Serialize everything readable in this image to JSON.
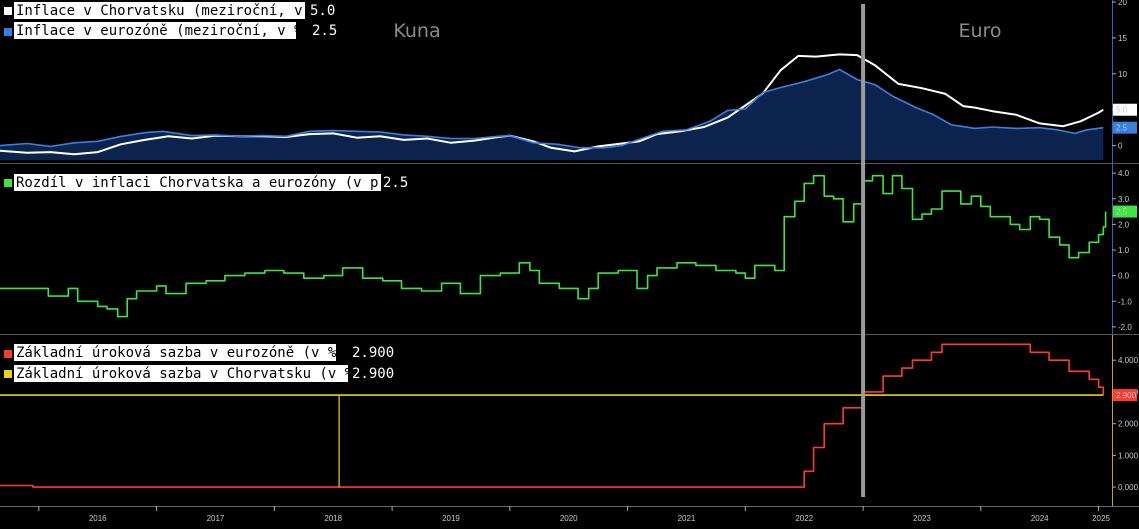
{
  "chart_data": [
    {
      "type": "area",
      "title": "",
      "xlabel": "",
      "ylabel": "",
      "x_range": [
        2015.67,
        2025.08
      ],
      "ylim": [
        -2,
        20
      ],
      "yticks": [
        "20",
        "15",
        "10",
        "5",
        "0"
      ],
      "grid": false,
      "legend_position": "top-left",
      "annotations": [
        "Kuna",
        "Euro"
      ],
      "series": [
        {
          "name": "Inflace v Chorvatsku (meziroční, v %)",
          "last_value": "5.0",
          "color": "#ffffff",
          "points": [
            [
              2015.67,
              -0.7
            ],
            [
              2015.9,
              -1.0
            ],
            [
              2016.1,
              -0.9
            ],
            [
              2016.3,
              -1.2
            ],
            [
              2016.5,
              -0.9
            ],
            [
              2016.7,
              0.2
            ],
            [
              2016.9,
              0.8
            ],
            [
              2017.1,
              1.3
            ],
            [
              2017.3,
              1.0
            ],
            [
              2017.5,
              1.4
            ],
            [
              2017.7,
              1.3
            ],
            [
              2017.9,
              1.3
            ],
            [
              2018.1,
              1.2
            ],
            [
              2018.3,
              1.6
            ],
            [
              2018.5,
              1.7
            ],
            [
              2018.7,
              1.1
            ],
            [
              2018.9,
              1.3
            ],
            [
              2019.1,
              0.8
            ],
            [
              2019.3,
              1.0
            ],
            [
              2019.5,
              0.4
            ],
            [
              2019.7,
              0.7
            ],
            [
              2019.9,
              1.2
            ],
            [
              2020.0,
              1.4
            ],
            [
              2020.2,
              0.6
            ],
            [
              2020.35,
              -0.3
            ],
            [
              2020.55,
              -0.8
            ],
            [
              2020.75,
              -0.1
            ],
            [
              2020.9,
              0.2
            ],
            [
              2021.1,
              0.6
            ],
            [
              2021.25,
              1.6
            ],
            [
              2021.45,
              2.0
            ],
            [
              2021.65,
              2.6
            ],
            [
              2021.85,
              3.9
            ],
            [
              2022.0,
              5.6
            ],
            [
              2022.15,
              7.3
            ],
            [
              2022.3,
              10.5
            ],
            [
              2022.45,
              12.5
            ],
            [
              2022.6,
              12.4
            ],
            [
              2022.8,
              12.7
            ],
            [
              2022.95,
              12.6
            ],
            [
              2023.1,
              11.2
            ],
            [
              2023.3,
              8.6
            ],
            [
              2023.5,
              8.0
            ],
            [
              2023.7,
              7.2
            ],
            [
              2023.85,
              5.5
            ],
            [
              2023.95,
              5.3
            ],
            [
              2024.1,
              4.8
            ],
            [
              2024.3,
              4.3
            ],
            [
              2024.5,
              3.1
            ],
            [
              2024.7,
              2.7
            ],
            [
              2024.85,
              3.4
            ],
            [
              2025.0,
              4.6
            ],
            [
              2025.04,
              5.0
            ]
          ]
        },
        {
          "name": "Inflace v eurozóně (meziroční, v %)",
          "last_value": "2.5",
          "color": "#3a7fe0",
          "points": [
            [
              2015.67,
              0.0
            ],
            [
              2015.9,
              0.3
            ],
            [
              2016.1,
              -0.1
            ],
            [
              2016.3,
              0.4
            ],
            [
              2016.5,
              0.6
            ],
            [
              2016.7,
              1.3
            ],
            [
              2016.9,
              1.8
            ],
            [
              2017.05,
              2.0
            ],
            [
              2017.3,
              1.4
            ],
            [
              2017.5,
              1.5
            ],
            [
              2017.7,
              1.3
            ],
            [
              2017.9,
              1.4
            ],
            [
              2018.1,
              1.3
            ],
            [
              2018.3,
              2.0
            ],
            [
              2018.5,
              2.1
            ],
            [
              2018.7,
              2.0
            ],
            [
              2018.9,
              1.9
            ],
            [
              2019.1,
              1.5
            ],
            [
              2019.3,
              1.3
            ],
            [
              2019.5,
              1.0
            ],
            [
              2019.7,
              1.0
            ],
            [
              2019.9,
              1.3
            ],
            [
              2020.0,
              1.4
            ],
            [
              2020.2,
              0.4
            ],
            [
              2020.4,
              0.2
            ],
            [
              2020.6,
              -0.3
            ],
            [
              2020.8,
              -0.3
            ],
            [
              2020.95,
              0.0
            ],
            [
              2021.1,
              0.9
            ],
            [
              2021.3,
              2.0
            ],
            [
              2021.5,
              2.2
            ],
            [
              2021.7,
              3.4
            ],
            [
              2021.85,
              4.9
            ],
            [
              2022.0,
              5.1
            ],
            [
              2022.15,
              7.4
            ],
            [
              2022.3,
              8.1
            ],
            [
              2022.5,
              8.9
            ],
            [
              2022.7,
              9.9
            ],
            [
              2022.8,
              10.6
            ],
            [
              2022.95,
              9.2
            ],
            [
              2023.1,
              8.5
            ],
            [
              2023.25,
              6.9
            ],
            [
              2023.45,
              5.3
            ],
            [
              2023.6,
              4.3
            ],
            [
              2023.75,
              2.9
            ],
            [
              2023.95,
              2.4
            ],
            [
              2024.1,
              2.6
            ],
            [
              2024.3,
              2.4
            ],
            [
              2024.5,
              2.5
            ],
            [
              2024.65,
              2.2
            ],
            [
              2024.8,
              1.7
            ],
            [
              2024.9,
              2.2
            ],
            [
              2025.04,
              2.5
            ]
          ]
        }
      ]
    },
    {
      "type": "line",
      "title": "",
      "xlabel": "",
      "ylabel": "",
      "x_range": [
        2015.67,
        2025.08
      ],
      "ylim": [
        -2.2,
        4.2
      ],
      "yticks": [
        "4.0",
        "3.0",
        "2.0",
        "1.0",
        "0.0",
        "-1.0",
        "-2.0"
      ],
      "grid": false,
      "legend_position": "top-left",
      "series": [
        {
          "name": "Rozdíl v inflaci Chorvatska a eurozóny (v p.b.)",
          "last_value": "2.5",
          "color": "#3ee53e",
          "step": true,
          "points": [
            [
              2015.67,
              -0.5
            ],
            [
              2015.95,
              -0.5
            ],
            [
              2016.0,
              -0.5
            ],
            [
              2016.08,
              -0.8
            ],
            [
              2016.25,
              -0.5
            ],
            [
              2016.33,
              -1.0
            ],
            [
              2016.5,
              -1.2
            ],
            [
              2016.58,
              -1.3
            ],
            [
              2016.67,
              -1.6
            ],
            [
              2016.75,
              -0.9
            ],
            [
              2016.83,
              -0.6
            ],
            [
              2017.0,
              -0.4
            ],
            [
              2017.08,
              -0.7
            ],
            [
              2017.25,
              -0.3
            ],
            [
              2017.42,
              -0.2
            ],
            [
              2017.58,
              0.0
            ],
            [
              2017.75,
              0.1
            ],
            [
              2017.92,
              0.2
            ],
            [
              2018.08,
              0.1
            ],
            [
              2018.25,
              -0.1
            ],
            [
              2018.42,
              0.0
            ],
            [
              2018.58,
              0.3
            ],
            [
              2018.75,
              -0.1
            ],
            [
              2018.92,
              -0.2
            ],
            [
              2019.08,
              -0.5
            ],
            [
              2019.25,
              -0.6
            ],
            [
              2019.42,
              -0.3
            ],
            [
              2019.58,
              -0.7
            ],
            [
              2019.75,
              0.0
            ],
            [
              2019.92,
              0.1
            ],
            [
              2020.08,
              0.5
            ],
            [
              2020.17,
              0.2
            ],
            [
              2020.25,
              -0.3
            ],
            [
              2020.42,
              -0.5
            ],
            [
              2020.58,
              -0.9
            ],
            [
              2020.67,
              -0.5
            ],
            [
              2020.75,
              0.1
            ],
            [
              2020.92,
              0.2
            ],
            [
              2021.08,
              -0.5
            ],
            [
              2021.17,
              0.0
            ],
            [
              2021.25,
              0.3
            ],
            [
              2021.42,
              0.5
            ],
            [
              2021.58,
              0.4
            ],
            [
              2021.75,
              0.2
            ],
            [
              2021.92,
              0.1
            ],
            [
              2022.0,
              -0.1
            ],
            [
              2022.08,
              0.4
            ],
            [
              2022.25,
              0.2
            ],
            [
              2022.33,
              2.3
            ],
            [
              2022.42,
              2.9
            ],
            [
              2022.5,
              3.6
            ],
            [
              2022.58,
              3.9
            ],
            [
              2022.67,
              3.1
            ],
            [
              2022.75,
              3.0
            ],
            [
              2022.83,
              2.1
            ],
            [
              2022.92,
              2.8
            ],
            [
              2023.0,
              3.7
            ],
            [
              2023.08,
              3.9
            ],
            [
              2023.17,
              3.2
            ],
            [
              2023.25,
              3.9
            ],
            [
              2023.33,
              3.4
            ],
            [
              2023.42,
              2.2
            ],
            [
              2023.5,
              2.4
            ],
            [
              2023.58,
              2.6
            ],
            [
              2023.67,
              3.3
            ],
            [
              2023.83,
              2.8
            ],
            [
              2023.92,
              3.1
            ],
            [
              2024.0,
              2.7
            ],
            [
              2024.08,
              2.3
            ],
            [
              2024.25,
              2.0
            ],
            [
              2024.33,
              1.8
            ],
            [
              2024.42,
              2.3
            ],
            [
              2024.5,
              2.2
            ],
            [
              2024.58,
              1.5
            ],
            [
              2024.67,
              1.2
            ],
            [
              2024.75,
              0.7
            ],
            [
              2024.83,
              0.9
            ],
            [
              2024.92,
              1.3
            ],
            [
              2025.0,
              1.6
            ],
            [
              2025.04,
              1.9
            ],
            [
              2025.06,
              2.5
            ]
          ]
        }
      ]
    },
    {
      "type": "line",
      "title": "",
      "xlabel": "",
      "ylabel": "",
      "x_range": [
        2015.67,
        2025.08
      ],
      "ylim": [
        -0.5,
        4.7
      ],
      "yticks": [
        "4.000",
        "3.000",
        "2.000",
        "1.000",
        "0.000"
      ],
      "grid": false,
      "legend_position": "top-left",
      "series": [
        {
          "name": "Základní úroková sazba v eurozóně (v %)",
          "last_value": "2.900",
          "color": "#ff3b30",
          "step": true,
          "points": [
            [
              2015.67,
              0.05
            ],
            [
              2015.85,
              0.05
            ],
            [
              2015.95,
              0.0
            ],
            [
              2022.25,
              0.0
            ],
            [
              2022.5,
              0.5
            ],
            [
              2022.58,
              1.25
            ],
            [
              2022.67,
              2.0
            ],
            [
              2022.83,
              2.5
            ],
            [
              2023.0,
              3.0
            ],
            [
              2023.17,
              3.5
            ],
            [
              2023.33,
              3.75
            ],
            [
              2023.42,
              4.0
            ],
            [
              2023.58,
              4.25
            ],
            [
              2023.67,
              4.5
            ],
            [
              2024.42,
              4.25
            ],
            [
              2024.58,
              4.0
            ],
            [
              2024.75,
              3.65
            ],
            [
              2024.92,
              3.4
            ],
            [
              2025.0,
              3.15
            ],
            [
              2025.04,
              2.9
            ]
          ]
        },
        {
          "name": "Základní úroková sazba v Chorvatsku (v %)",
          "last_value": "2.900",
          "color": "#e6d21e",
          "points": [
            [
              2015.67,
              2.9
            ],
            [
              2025.04,
              2.9
            ]
          ]
        }
      ]
    }
  ],
  "x_axis": {
    "years": [
      "2016",
      "2017",
      "2018",
      "2019",
      "2020",
      "2021",
      "2022",
      "2023",
      "2024",
      "2025"
    ]
  },
  "euro_adoption_date": 2023.0
}
